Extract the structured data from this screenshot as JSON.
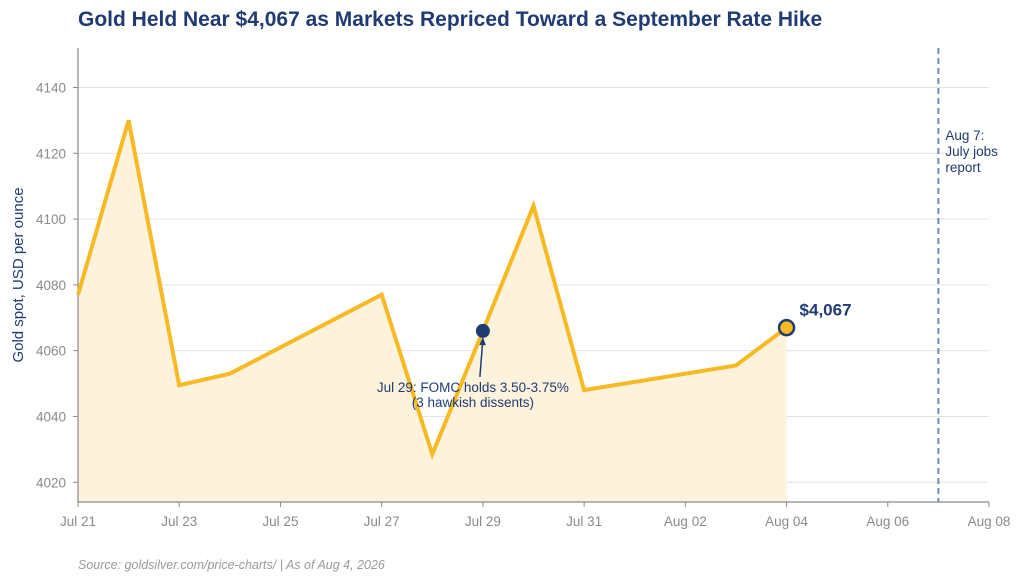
{
  "title": "Gold Held Near $4,067 as Markets Repriced Toward a September Rate Hike",
  "source": "Source: goldsilver.com/price-charts/  |  As of Aug 4, 2026",
  "colors": {
    "line": "#f7b924",
    "fill": "#fdf3dc",
    "accent": "#1f3b73",
    "event_line": "#6f8bb8"
  },
  "chart_data": {
    "type": "area",
    "ylabel": "Gold spot, USD per ounce",
    "xlabel": "",
    "ylim": [
      4014,
      4152
    ],
    "xlim": [
      "2026-07-21",
      "2026-08-08"
    ],
    "x_ticks": [
      "Jul 21",
      "Jul 23",
      "Jul 25",
      "Jul 27",
      "Jul 29",
      "Jul 31",
      "Aug 02",
      "Aug 04",
      "Aug 06",
      "Aug 08"
    ],
    "y_ticks": [
      "4020",
      "4040",
      "4060",
      "4080",
      "4100",
      "4120",
      "4140"
    ],
    "grid": true,
    "series": [
      {
        "x": [
          "2026-07-21",
          "2026-07-22",
          "2026-07-23",
          "2026-07-24",
          "2026-07-27",
          "2026-07-28",
          "2026-07-29",
          "2026-07-30",
          "2026-07-31",
          "2026-08-03",
          "2026-08-04"
        ],
        "values": [
          4077,
          4130,
          4049.5,
          4053,
          4077,
          4028.5,
          4066,
          4104,
          4048,
          4055.5,
          4067
        ]
      }
    ],
    "annotations": {
      "last_value_label": "$4,067",
      "fomc": {
        "x": "2026-07-29",
        "y": 4066,
        "text": [
          "Jul 29: FOMC holds 3.50-3.75%",
          "(3 hawkish dissents)"
        ]
      },
      "event": {
        "x": "2026-08-07",
        "text": [
          "Aug 7:",
          "July jobs",
          "report"
        ]
      }
    }
  }
}
